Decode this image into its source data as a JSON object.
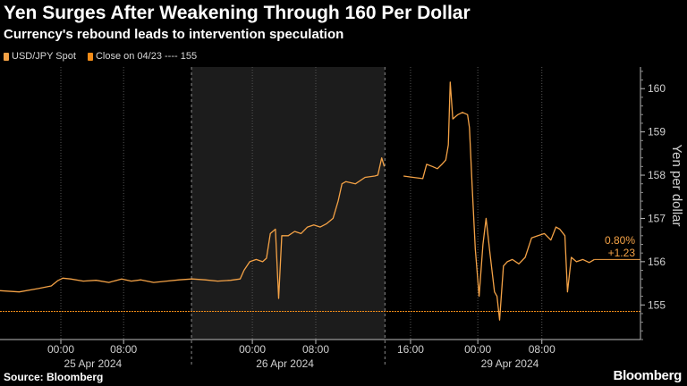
{
  "header": {
    "title": "Yen Surges After Weakening Through 160 Per Dollar",
    "subtitle": "Currency's rebound leads to intervention speculation"
  },
  "legend": {
    "series_label": "USD/JPY Spot",
    "reference_label": "Close on 04/23 ---- 155"
  },
  "footer": {
    "source": "Source: Bloomberg",
    "brand": "Bloomberg"
  },
  "colors": {
    "series": "#f4a246",
    "reference": "#f28c18",
    "shade": "#1c1c1c",
    "grid": "#555555"
  },
  "chart_data": {
    "type": "line",
    "title": "Yen Surges After Weakening Through 160 Per Dollar",
    "subtitle": "Currency's rebound leads to intervention speculation",
    "ylabel": "Yen per dollar",
    "y_axis_side": "right",
    "ylim": [
      154.2,
      160.5
    ],
    "yticks": [
      155,
      156,
      157,
      158,
      159,
      160
    ],
    "xlim": [
      0,
      100
    ],
    "x_ticks": [
      {
        "x": 9.5,
        "label": "00:00"
      },
      {
        "x": 19.3,
        "label": "08:00"
      },
      {
        "x": 39.4,
        "label": "00:00"
      },
      {
        "x": 49.3,
        "label": "08:00"
      },
      {
        "x": 64.1,
        "label": "16:00"
      },
      {
        "x": 74.6,
        "label": "00:00"
      },
      {
        "x": 84.6,
        "label": "08:00"
      }
    ],
    "day_labels": [
      {
        "x": 14.5,
        "label": "25 Apr 2024"
      },
      {
        "x": 44.5,
        "label": "26 Apr 2024"
      },
      {
        "x": 79.6,
        "label": "29 Apr 2024"
      }
    ],
    "day_boundaries": [
      29.9,
      60.1
    ],
    "shaded_range": [
      29.9,
      60.1
    ],
    "reference_line": {
      "name": "Close on 04/23",
      "value": 154.85
    },
    "annotations": [
      {
        "label": "0.80%",
        "value": 156.2
      },
      {
        "label": "+1.23",
        "value": 156.02
      }
    ],
    "grid": "vertical dotted",
    "legend_position": "top-left",
    "series": [
      {
        "name": "USD/JPY Spot",
        "segments": [
          [
            [
              0,
              155.33
            ],
            [
              3,
              155.3
            ],
            [
              6,
              155.38
            ],
            [
              8,
              155.44
            ],
            [
              9,
              155.56
            ],
            [
              9.8,
              155.62
            ],
            [
              11,
              155.6
            ],
            [
              13,
              155.55
            ],
            [
              15,
              155.57
            ],
            [
              17,
              155.52
            ],
            [
              19,
              155.6
            ],
            [
              20.5,
              155.55
            ],
            [
              22,
              155.58
            ],
            [
              24,
              155.52
            ],
            [
              26,
              155.55
            ],
            [
              28,
              155.58
            ],
            [
              30,
              155.6
            ],
            [
              32,
              155.58
            ],
            [
              34,
              155.55
            ],
            [
              36,
              155.57
            ],
            [
              37.5,
              155.6
            ],
            [
              38.1,
              155.8
            ],
            [
              39,
              156.0
            ],
            [
              40,
              156.05
            ],
            [
              41,
              156.0
            ],
            [
              41.6,
              156.08
            ],
            [
              42.2,
              156.65
            ],
            [
              43,
              156.75
            ],
            [
              43.5,
              155.15
            ],
            [
              44,
              156.6
            ],
            [
              45,
              156.6
            ],
            [
              46,
              156.7
            ],
            [
              47,
              156.65
            ],
            [
              48,
              156.8
            ],
            [
              49,
              156.85
            ],
            [
              50,
              156.8
            ],
            [
              51,
              156.88
            ],
            [
              52,
              157.0
            ],
            [
              52.8,
              157.4
            ],
            [
              53.4,
              157.8
            ],
            [
              54,
              157.85
            ],
            [
              55.5,
              157.8
            ],
            [
              57,
              157.95
            ],
            [
              58.5,
              157.98
            ],
            [
              59,
              158.0
            ],
            [
              59.6,
              158.4
            ],
            [
              60,
              158.2
            ]
          ],
          [
            [
              63,
              157.98
            ],
            [
              64.5,
              157.95
            ],
            [
              66,
              157.92
            ],
            [
              66.6,
              158.25
            ],
            [
              67.5,
              158.2
            ],
            [
              68.3,
              158.15
            ],
            [
              69,
              158.25
            ],
            [
              69.6,
              158.35
            ],
            [
              70,
              158.7
            ],
            [
              70.3,
              160.15
            ],
            [
              70.7,
              159.3
            ],
            [
              71.5,
              159.4
            ],
            [
              72.2,
              159.45
            ],
            [
              73,
              159.4
            ],
            [
              73.3,
              159.1
            ],
            [
              73.7,
              157.8
            ],
            [
              74.2,
              156.3
            ],
            [
              74.8,
              155.2
            ],
            [
              75.4,
              156.4
            ],
            [
              75.9,
              157.0
            ],
            [
              76.5,
              156.2
            ],
            [
              77.2,
              155.3
            ],
            [
              77.6,
              155.2
            ],
            [
              78,
              154.65
            ],
            [
              78.6,
              155.9
            ],
            [
              79.2,
              156.0
            ],
            [
              80,
              156.05
            ],
            [
              81,
              155.95
            ],
            [
              82,
              156.1
            ],
            [
              83,
              156.55
            ],
            [
              84,
              156.6
            ],
            [
              85,
              156.65
            ],
            [
              86,
              156.5
            ],
            [
              86.8,
              156.8
            ],
            [
              87.4,
              156.75
            ],
            [
              88.2,
              156.6
            ],
            [
              88.6,
              155.3
            ],
            [
              89.2,
              156.1
            ],
            [
              90,
              156.0
            ],
            [
              91,
              156.05
            ],
            [
              92,
              155.98
            ],
            [
              92.8,
              156.05
            ]
          ]
        ]
      }
    ]
  }
}
